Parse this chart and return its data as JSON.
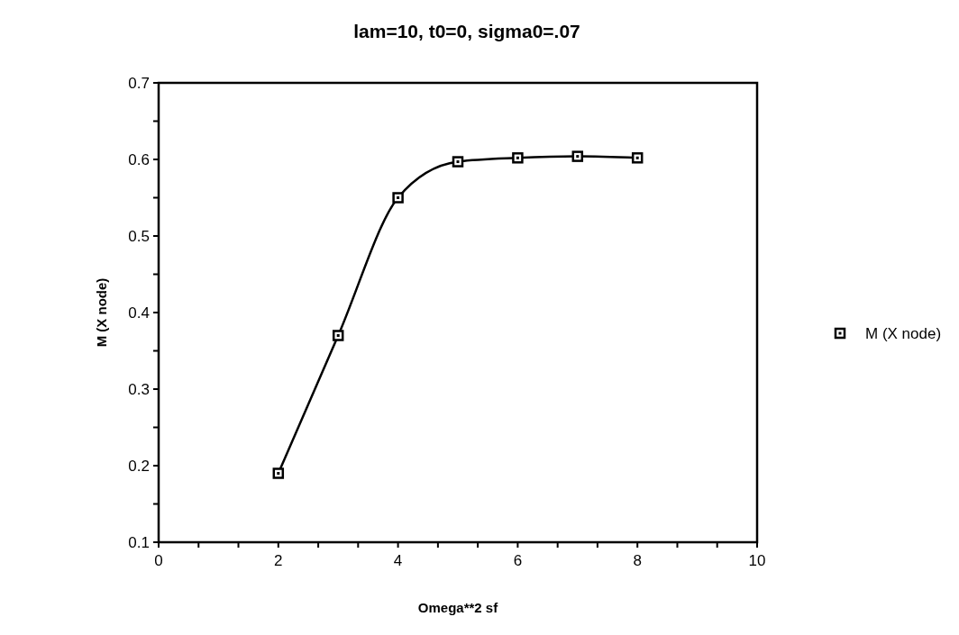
{
  "chart_data": {
    "type": "line",
    "title": "lam=10, t0=0, sigma0=.07",
    "xlabel": "Omega**2 sf",
    "ylabel": "M  (X  node)",
    "x": [
      2,
      3,
      4,
      5,
      6,
      7,
      8
    ],
    "series": [
      {
        "name": "M (X node)",
        "color": "#000000",
        "values": [
          0.19,
          0.37,
          0.55,
          0.597,
          0.602,
          0.604,
          0.602
        ]
      }
    ],
    "xlim": [
      0,
      10
    ],
    "xticks": [
      0,
      {
        "value": 0.667,
        "label": null
      },
      {
        "value": 1.333,
        "label": null
      },
      2,
      {
        "value": 2.667,
        "label": null
      },
      {
        "value": 3.333,
        "label": null
      },
      4,
      {
        "value": 4.667,
        "label": null
      },
      {
        "value": 5.333,
        "label": null
      },
      6,
      {
        "value": 6.667,
        "label": null
      },
      {
        "value": 7.333,
        "label": null
      },
      8,
      {
        "value": 8.667,
        "label": null
      },
      {
        "value": 9.333,
        "label": null
      },
      10
    ],
    "ylim": [
      0.1,
      0.7
    ],
    "yticks": [
      0.1,
      {
        "value": 0.15,
        "label": null
      },
      0.2,
      {
        "value": 0.25,
        "label": null
      },
      0.3,
      {
        "value": 0.35,
        "label": null
      },
      0.4,
      {
        "value": 0.45,
        "label": null
      },
      0.5,
      {
        "value": 0.55,
        "label": null
      },
      0.6,
      {
        "value": 0.65,
        "label": null
      },
      0.7
    ],
    "marker": "square",
    "legend": "right",
    "grid": false
  }
}
